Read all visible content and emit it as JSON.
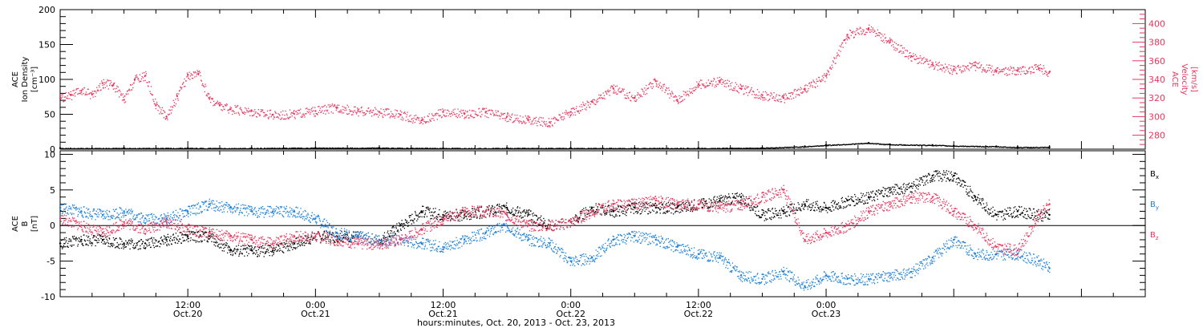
{
  "colors": {
    "axis": "#000000",
    "velocity": "#e8365e",
    "bx": "#000000",
    "by": "#1a7fd8",
    "bz": "#e8365e",
    "density": "#000000"
  },
  "chart_data": [
    {
      "type": "scatter",
      "panel": "top",
      "ylabel_lines": [
        "ACE",
        "Ion Density",
        "[cm⁻³]"
      ],
      "y2label_lines": [
        "ACE",
        "Velocity",
        "[km/s]"
      ],
      "ylim": [
        0,
        200
      ],
      "yticks": [
        0,
        50,
        100,
        150,
        200
      ],
      "y2lim": [
        265,
        415
      ],
      "y2ticks": [
        280,
        300,
        320,
        340,
        360,
        380,
        400
      ],
      "xlim": [
        0,
        93
      ],
      "grid": false,
      "series": [
        {
          "id": "density",
          "axis": "left",
          "color": "#000000",
          "x": [
            0,
            6,
            12,
            18,
            24,
            30,
            36,
            42,
            48,
            54,
            60,
            66,
            70,
            72,
            76,
            78,
            82,
            84,
            88,
            90,
            93
          ],
          "y": [
            1.5,
            1.5,
            1.5,
            1.5,
            2,
            2,
            1.5,
            1.5,
            1.5,
            1.5,
            1.5,
            2,
            4,
            6,
            9,
            7,
            6,
            5,
            4,
            3,
            3
          ]
        },
        {
          "id": "velocity",
          "axis": "right",
          "color": "#e8365e",
          "x": [
            0,
            1,
            2,
            3,
            4,
            5,
            6,
            7,
            8,
            9,
            10,
            11,
            12,
            13,
            14,
            15,
            16,
            18,
            20,
            22,
            24,
            26,
            28,
            30,
            32,
            34,
            36,
            38,
            40,
            42,
            44,
            46,
            48,
            50,
            52,
            54,
            56,
            58,
            60,
            62,
            64,
            66,
            68,
            70,
            72,
            74,
            76,
            78,
            80,
            82,
            84,
            86,
            88,
            90,
            92,
            93
          ],
          "y": [
            320,
            323,
            328,
            324,
            336,
            334,
            318,
            340,
            344,
            312,
            300,
            322,
            345,
            346,
            320,
            312,
            308,
            306,
            302,
            303,
            306,
            310,
            306,
            305,
            302,
            296,
            305,
            303,
            305,
            300,
            296,
            294,
            305,
            316,
            330,
            320,
            338,
            318,
            335,
            338,
            330,
            323,
            320,
            330,
            344,
            388,
            395,
            380,
            365,
            356,
            350,
            355,
            349,
            350,
            352,
            348
          ]
        }
      ]
    },
    {
      "type": "scatter",
      "panel": "bottom",
      "ylabel_lines": [
        "ACE",
        "B",
        "[nT]"
      ],
      "ylim": [
        -10,
        10.5
      ],
      "yticks": [
        -10,
        -5,
        0,
        5,
        10
      ],
      "xlim": [
        0,
        93
      ],
      "grid": false,
      "zero_line": true,
      "series": [
        {
          "id": "bx",
          "name": "Bₓ",
          "color": "#000000",
          "x": [
            0,
            2,
            4,
            6,
            8,
            10,
            12,
            14,
            16,
            18,
            20,
            22,
            24,
            26,
            28,
            30,
            32,
            34,
            36,
            38,
            40,
            42,
            44,
            46,
            48,
            50,
            52,
            54,
            56,
            58,
            60,
            62,
            64,
            66,
            68,
            70,
            72,
            74,
            76,
            78,
            80,
            82,
            84,
            86,
            88,
            90,
            92,
            93
          ],
          "y": [
            -2.5,
            -2,
            -2,
            -2.5,
            -2.5,
            -2,
            -1.5,
            -1.5,
            -3.5,
            -3.5,
            -3.5,
            -2.5,
            -1.5,
            -1.5,
            -1.5,
            -2,
            0,
            2,
            1.5,
            1.5,
            2,
            2.5,
            1.5,
            0,
            0.5,
            2.5,
            2,
            2.5,
            2.5,
            2.5,
            3,
            3.5,
            4,
            1.5,
            2,
            3,
            2.5,
            3.5,
            4,
            5,
            5.5,
            7,
            7,
            4,
            1.5,
            2,
            1.5,
            1.5
          ]
        },
        {
          "id": "by",
          "name": "B_y",
          "color": "#1a7fd8",
          "x": [
            0,
            2,
            4,
            6,
            8,
            10,
            12,
            14,
            16,
            18,
            20,
            22,
            24,
            26,
            28,
            30,
            32,
            34,
            36,
            38,
            40,
            42,
            44,
            46,
            48,
            50,
            52,
            54,
            56,
            58,
            60,
            62,
            64,
            66,
            68,
            70,
            72,
            74,
            76,
            78,
            80,
            82,
            84,
            86,
            88,
            90,
            92,
            93
          ],
          "y": [
            2.5,
            2,
            1.5,
            2,
            1,
            1,
            2,
            3,
            2.5,
            2,
            2,
            2,
            1,
            -1,
            -1.5,
            -2,
            -2,
            -2.5,
            -3,
            -2,
            -1,
            0,
            -2,
            -2.5,
            -5,
            -4.5,
            -2,
            -1.5,
            -2,
            -3,
            -4,
            -4.5,
            -7,
            -7.5,
            -6.5,
            -8.5,
            -7,
            -7.5,
            -7.5,
            -7,
            -6.5,
            -4.5,
            -2,
            -4,
            -4,
            -4,
            -5,
            -6
          ]
        },
        {
          "id": "bz",
          "name": "B_z",
          "color": "#e8365e",
          "x": [
            0,
            2,
            4,
            6,
            8,
            10,
            12,
            14,
            16,
            18,
            20,
            22,
            24,
            26,
            28,
            30,
            32,
            34,
            36,
            38,
            40,
            42,
            44,
            46,
            48,
            50,
            52,
            54,
            56,
            58,
            60,
            62,
            64,
            66,
            68,
            70,
            72,
            74,
            76,
            78,
            80,
            82,
            84,
            86,
            88,
            90,
            92,
            93
          ],
          "y": [
            1,
            0,
            -1,
            0.5,
            -0.5,
            0.5,
            -0.5,
            -1,
            -1.5,
            -2,
            -2.5,
            -1.5,
            -1.5,
            -2,
            -2.5,
            -2.5,
            -2,
            -0.5,
            1,
            2,
            2,
            1.5,
            0,
            0,
            0.5,
            2,
            3,
            3,
            3.5,
            3,
            3,
            2.5,
            3,
            4,
            5,
            -2,
            -1,
            0,
            2,
            3,
            4,
            4,
            2,
            0,
            -3,
            -3.5,
            1.5,
            3
          ]
        }
      ]
    }
  ],
  "x_axis": {
    "tick_labels": [
      {
        "hours": 12,
        "time": "12:00",
        "date": "Oct.20"
      },
      {
        "hours": 24,
        "time": "0:00",
        "date": "Oct.21"
      },
      {
        "hours": 36,
        "time": "12:00",
        "date": "Oct.21"
      },
      {
        "hours": 48,
        "time": "0:00",
        "date": "Oct.22"
      },
      {
        "hours": 60,
        "time": "12:00",
        "date": "Oct.22"
      },
      {
        "hours": 72,
        "time": "0:00",
        "date": "Oct.23"
      }
    ],
    "xlabel": "hours:minutes, Oct. 20, 2013 - Oct. 23, 2013"
  }
}
